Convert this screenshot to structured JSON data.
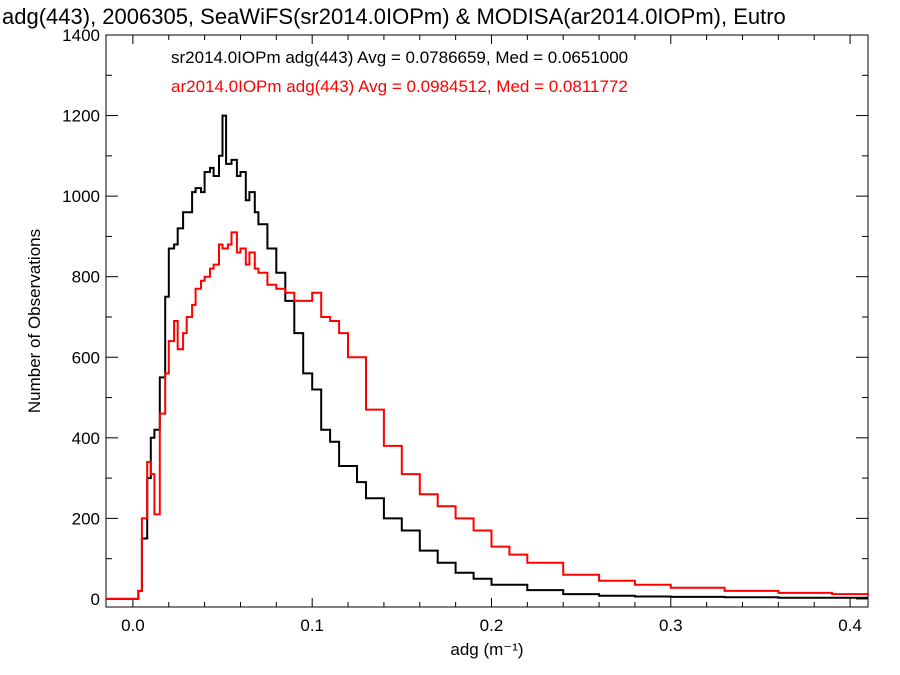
{
  "chart_data": {
    "type": "line",
    "title": "adg(443), 2006305, SeaWiFS(sr2014.0IOPm) & MODISA(ar2014.0IOPm), Eutro",
    "xlabel": "adg (m⁻¹)",
    "ylabel": "Number of Observations",
    "xlim": [
      -0.015,
      0.41
    ],
    "ylim": [
      -20,
      1400
    ],
    "x_ticks": [
      0.0,
      0.1,
      0.2,
      0.3,
      0.4
    ],
    "x_tick_labels": [
      "0.0",
      "0.1",
      "0.2",
      "0.3",
      "0.4"
    ],
    "y_ticks": [
      0,
      200,
      400,
      600,
      800,
      1000,
      1200,
      1400
    ],
    "y_tick_labels": [
      "0",
      "200",
      "400",
      "600",
      "800",
      "1000",
      "1200",
      "1400"
    ],
    "grid": false,
    "legend_placement": "top-left (text annotations)",
    "series": [
      {
        "name": "sr2014.0IOPm",
        "label": "sr2014.0IOPm adg(443) Avg = 0.0786659, Med = 0.0651000",
        "color": "#000000",
        "x": [
          -0.015,
          0.0,
          0.003,
          0.005,
          0.008,
          0.01,
          0.012,
          0.015,
          0.018,
          0.02,
          0.023,
          0.025,
          0.028,
          0.03,
          0.033,
          0.035,
          0.038,
          0.04,
          0.043,
          0.045,
          0.048,
          0.05,
          0.052,
          0.055,
          0.058,
          0.06,
          0.063,
          0.065,
          0.068,
          0.07,
          0.075,
          0.08,
          0.085,
          0.09,
          0.095,
          0.1,
          0.105,
          0.11,
          0.115,
          0.12,
          0.125,
          0.13,
          0.14,
          0.15,
          0.16,
          0.17,
          0.18,
          0.19,
          0.2,
          0.22,
          0.24,
          0.26,
          0.28,
          0.3,
          0.33,
          0.36,
          0.39,
          0.41
        ],
        "values": [
          0,
          0,
          20,
          150,
          300,
          400,
          420,
          550,
          750,
          870,
          880,
          920,
          960,
          960,
          1010,
          1020,
          1010,
          1060,
          1070,
          1050,
          1100,
          1200,
          1080,
          1090,
          1050,
          1060,
          990,
          1010,
          960,
          930,
          870,
          810,
          740,
          660,
          560,
          520,
          420,
          390,
          330,
          330,
          290,
          250,
          200,
          170,
          120,
          90,
          65,
          50,
          35,
          22,
          12,
          8,
          6,
          5,
          4,
          3,
          3,
          3
        ]
      },
      {
        "name": "ar2014.0IOPm",
        "label": "ar2014.0IOPm adg(443) Avg = 0.0984512, Med = 0.0811772",
        "color": "#ff0000",
        "x": [
          -0.015,
          0.0,
          0.003,
          0.005,
          0.008,
          0.01,
          0.012,
          0.015,
          0.018,
          0.02,
          0.023,
          0.025,
          0.028,
          0.03,
          0.033,
          0.035,
          0.038,
          0.04,
          0.043,
          0.045,
          0.048,
          0.05,
          0.053,
          0.055,
          0.058,
          0.06,
          0.063,
          0.065,
          0.068,
          0.07,
          0.075,
          0.08,
          0.085,
          0.09,
          0.095,
          0.1,
          0.105,
          0.11,
          0.115,
          0.12,
          0.13,
          0.14,
          0.15,
          0.16,
          0.17,
          0.18,
          0.19,
          0.2,
          0.21,
          0.22,
          0.24,
          0.26,
          0.28,
          0.3,
          0.33,
          0.36,
          0.39,
          0.41
        ],
        "values": [
          0,
          0,
          20,
          200,
          340,
          310,
          210,
          460,
          560,
          640,
          690,
          620,
          660,
          700,
          730,
          770,
          790,
          800,
          820,
          830,
          880,
          870,
          880,
          910,
          860,
          870,
          830,
          860,
          820,
          810,
          780,
          770,
          760,
          740,
          740,
          760,
          700,
          690,
          660,
          600,
          470,
          380,
          310,
          260,
          230,
          200,
          170,
          130,
          110,
          90,
          60,
          45,
          35,
          28,
          20,
          15,
          12,
          10
        ]
      }
    ]
  }
}
